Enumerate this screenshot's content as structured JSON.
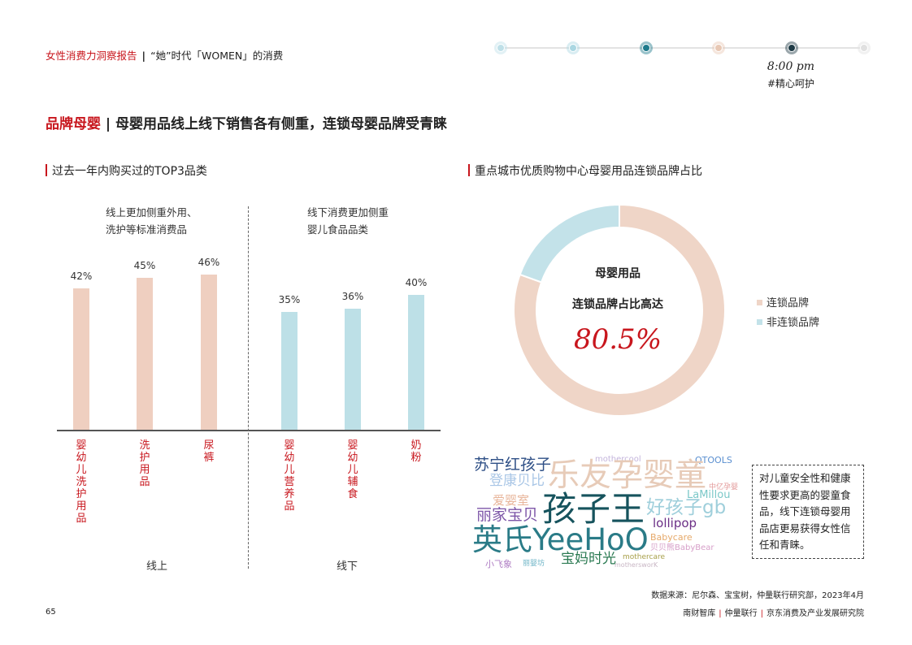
{
  "header": {
    "report_name": "女性消费力洞察报告",
    "section": "“她”时代「WOMEN」的消费",
    "timeline": {
      "dot_colors": [
        "#bfe0e8",
        "#aad7e2",
        "#1e7a8c",
        "#e8c8b4",
        "#1e3a45",
        "#e0e0e0"
      ],
      "time": "8:00 pm",
      "tag": "#精心呵护"
    }
  },
  "page_title": {
    "category": "品牌母婴",
    "headline": "母婴用品线上线下销售各有侧重，连锁母婴品牌受青睐"
  },
  "left_panel": {
    "subtitle": "过去一年内购买过的TOP3品类",
    "online_note": [
      "线上更加侧重外用、",
      "洗护等标准消费品"
    ],
    "offline_note": [
      "线下消费更加侧重",
      "婴儿食品品类"
    ],
    "group_labels": {
      "online": "线上",
      "offline": "线下"
    }
  },
  "right_panel": {
    "subtitle": "重点城市优质购物中心母婴用品连锁品牌占比",
    "donut_center": {
      "line1": "母婴用品",
      "line2": "连锁品牌占比高达",
      "value": "80.5%"
    },
    "note": "对儿童安全性和健康性要求更高的婴童食品，线下连锁母婴用品店更易获得女性信任和青睐。"
  },
  "chart_data": [
    {
      "type": "bar",
      "title": "过去一年内购买过的TOP3品类",
      "categories": [
        "婴幼儿洗护用品",
        "洗护用品",
        "尿裤",
        "婴幼儿营养品",
        "婴幼儿辅食",
        "奶粉"
      ],
      "series": [
        {
          "values": [
            42,
            45,
            46,
            35,
            36,
            40
          ]
        }
      ],
      "value_labels": [
        "42%",
        "45%",
        "46%",
        "35%",
        "36%",
        "40%"
      ],
      "groups": [
        {
          "name": "线上",
          "categories": [
            "婴幼儿洗护用品",
            "洗护用品",
            "尿裤"
          ],
          "color": "#efcfc0"
        },
        {
          "name": "线下",
          "categories": [
            "婴幼儿营养品",
            "婴幼儿辅食",
            "奶粉"
          ],
          "color": "#bde0e7"
        }
      ],
      "ylim": [
        0,
        60
      ],
      "grid": false
    },
    {
      "type": "pie",
      "title": "重点城市优质购物中心母婴用品连锁品牌占比",
      "labels": [
        "连锁品牌",
        "非连锁品牌"
      ],
      "values": [
        80.5,
        19.5
      ],
      "colors": [
        "#efd5c7",
        "#c3e2e9"
      ],
      "legend": "right"
    }
  ],
  "word_cloud": [
    {
      "text": "苏宁红孩子",
      "color": "#2e4f86"
    },
    {
      "text": "mothercool",
      "color": "#c4b5dc"
    },
    {
      "text": "QTOOLS",
      "color": "#5a8fd0"
    },
    {
      "text": "登康贝比",
      "color": "#a9c6e6"
    },
    {
      "text": "乐友孕婴童",
      "color": "#e7cbb8"
    },
    {
      "text": "中亿孕婴",
      "color": "#e39a9a"
    },
    {
      "text": "爱婴室",
      "color": "#e8b59a"
    },
    {
      "text": "孩子王",
      "color": "#16535d"
    },
    {
      "text": "LaMillou",
      "color": "#7bc8c8"
    },
    {
      "text": "丽家宝贝",
      "color": "#7d56a8"
    },
    {
      "text": "好孩子gb",
      "color": "#9fcfdb"
    },
    {
      "text": "lollipop",
      "color": "#6b2f86"
    },
    {
      "text": "英氏YeeHoO",
      "color": "#2a7b87"
    },
    {
      "text": "Babycare",
      "color": "#e6a96a"
    },
    {
      "text": "贝贝熊BabyBear",
      "color": "#d7a0c9"
    },
    {
      "text": "宝妈时光",
      "color": "#2b7a52"
    },
    {
      "text": "mothercare",
      "color": "#a8a04a"
    },
    {
      "text": "小飞象",
      "color": "#b07fc4"
    },
    {
      "text": "丽婴坊",
      "color": "#6fb5c7"
    },
    {
      "text": "mothersworK",
      "color": "#c9b7c5"
    }
  ],
  "footer": {
    "source": "数据来源：尼尔森、宝宝树，仲量联行研究部，2023年4月",
    "page": "65",
    "orgs": [
      "南财智库",
      "仲量联行",
      "京东消费及产业发展研究院"
    ]
  }
}
